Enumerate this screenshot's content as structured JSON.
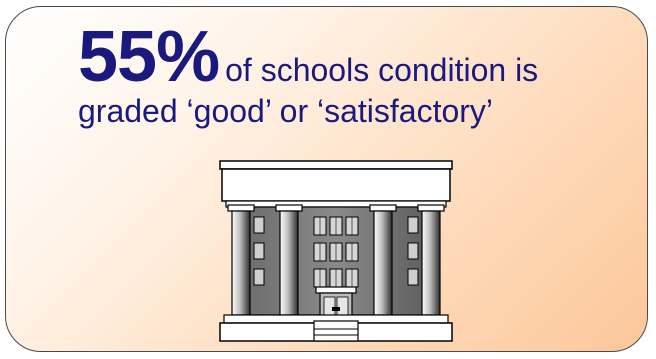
{
  "headline": {
    "percent": "55%",
    "line1_rest": "of schools condition is",
    "line2": "graded ‘good’ or ‘satisfactory’"
  },
  "illustration": {
    "icon": "school-building-icon"
  },
  "colors": {
    "text": "#1a1a7e",
    "border": "#4a4a4a",
    "gradient_start": "#ffffff",
    "gradient_end": "#fcc79a"
  }
}
